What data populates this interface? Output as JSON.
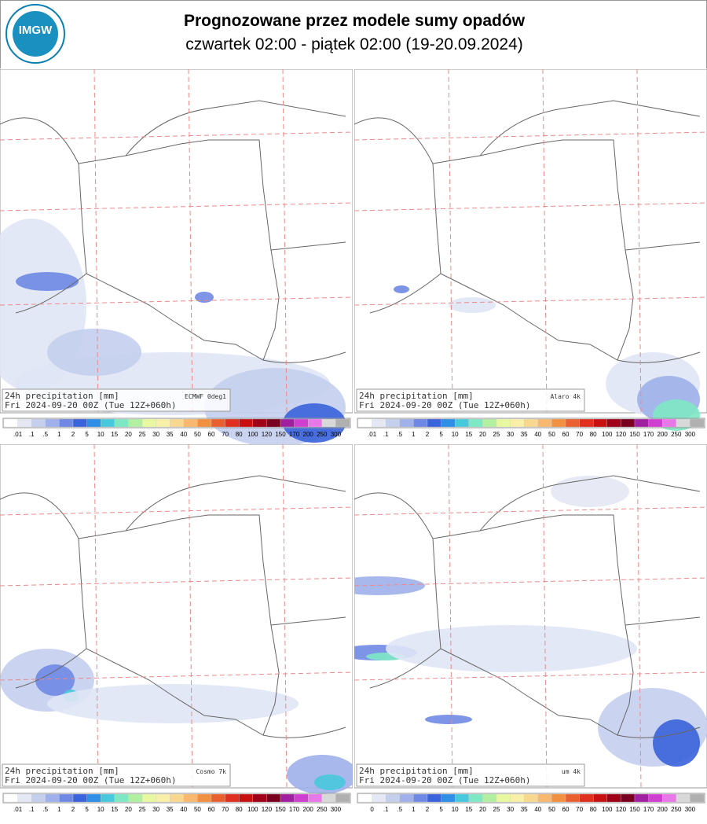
{
  "header": {
    "logo_text": "IMGW",
    "title": "Prognozowane przez modele sumy opadów",
    "subtitle": "czwartek 02:00 - piątek 02:00 (19-20.09.2024)"
  },
  "colorbar_colors": [
    "#ffffff",
    "#e4e8f4",
    "#c4cfee",
    "#9fb0ea",
    "#6f88e4",
    "#3a63dc",
    "#2f8fe6",
    "#48c8dc",
    "#7ee8c4",
    "#b0f0a0",
    "#e8f8a0",
    "#f8f0a8",
    "#f8d890",
    "#f8b870",
    "#f09040",
    "#e86030",
    "#e03020",
    "#c81010",
    "#a00018",
    "#7a0020",
    "#a020a0",
    "#d040d0",
    "#e878e8",
    "#d8d8d8",
    "#b0b0b0",
    "#888888",
    "#606060",
    "#404040"
  ],
  "panels": [
    {
      "label": "24h precipitation   [mm]",
      "model": "ECMWF 0deg1",
      "run": "Fri 2024-09-20 00Z (Tue 12Z+060h)",
      "colorbar_labels": [
        ".01",
        ".1",
        ".5",
        "1",
        "2",
        "5",
        "10",
        "15",
        "20",
        "25",
        "30",
        "35",
        "40",
        "50",
        "60",
        "70",
        "80",
        "100",
        "120",
        "150",
        "170",
        "200",
        "250",
        "300"
      ]
    },
    {
      "label": "24h precipitation   [mm]",
      "model": "Alaro 4k",
      "run": "Fri 2024-09-20 00Z (Tue 12Z+060h)",
      "colorbar_labels": [
        ".01",
        ".1",
        ".5",
        "1",
        "2",
        "5",
        "10",
        "15",
        "20",
        "25",
        "30",
        "35",
        "40",
        "50",
        "60",
        "70",
        "80",
        "100",
        "120",
        "150",
        "170",
        "200",
        "250",
        "300"
      ]
    },
    {
      "label": "24h precipitation   [mm]",
      "model": "Cosmo 7k",
      "run": "Fri 2024-09-20 00Z (Tue 12Z+060h)",
      "colorbar_labels": [
        ".01",
        ".1",
        ".5",
        "1",
        "2",
        "5",
        "10",
        "15",
        "20",
        "25",
        "30",
        "35",
        "40",
        "50",
        "60",
        "70",
        "80",
        "100",
        "120",
        "150",
        "170",
        "200",
        "250",
        "300"
      ]
    },
    {
      "label": "24h precipitation   [mm]",
      "model": "um 4k",
      "run": "Fri 2024-09-20 00Z (Tue 12Z+060h)",
      "colorbar_labels": [
        "0",
        ".1",
        ".5",
        "1",
        "2",
        "5",
        "10",
        "15",
        "20",
        "25",
        "30",
        "35",
        "40",
        "50",
        "60",
        "70",
        "80",
        "100",
        "120",
        "150",
        "170",
        "200",
        "250",
        "300"
      ]
    }
  ]
}
